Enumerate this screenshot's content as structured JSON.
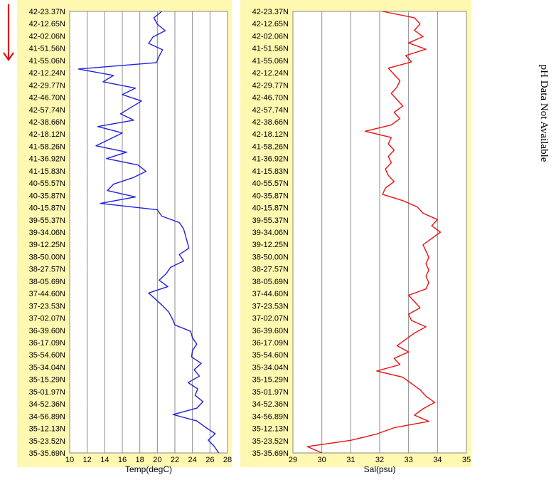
{
  "direction_arrow": {
    "color": "#e01010"
  },
  "chart_data": [
    {
      "type": "line",
      "xlabel": "Temp(degC)",
      "xlim": [
        10,
        28
      ],
      "xticks": [
        10,
        12,
        14,
        16,
        18,
        20,
        22,
        24,
        26,
        28
      ],
      "grid": true,
      "background": "#fff8b0",
      "line_color": "#2020e0",
      "ylabels": [
        "42-23.37N",
        "42-12.65N",
        "42-02.06N",
        "41-51.56N",
        "41-55.06N",
        "42-12.24N",
        "42-29.77N",
        "42-46.70N",
        "42-57.74N",
        "42-38.66N",
        "42-18.12N",
        "41-58.26N",
        "41-36.92N",
        "41-15.83N",
        "40-55.57N",
        "40-35.87N",
        "40-15.87N",
        "39-55.37N",
        "39-34.06N",
        "39-12.25N",
        "38-50.00N",
        "38-27.57N",
        "38-05.69N",
        "37-44.60N",
        "37-23.53N",
        "37-02.07N",
        "36-39.60N",
        "36-17.09N",
        "35-54.60N",
        "35-34.04N",
        "35-15.29N",
        "35-01.97N",
        "34-52.36N",
        "34-56.89N",
        "35-12.13N",
        "35-23.52N",
        "35-35.69N"
      ],
      "values": [
        20.5,
        19.6,
        20.0,
        20.9,
        19.5,
        19.0,
        20.6,
        20.2,
        19.9,
        11.0,
        15.0,
        13.8,
        17.5,
        16.0,
        18.2,
        17.0,
        15.8,
        17.3,
        13.2,
        16.0,
        14.5,
        13.0,
        16.5,
        14.2,
        17.8,
        18.7,
        17.2,
        15.0,
        14.3,
        17.5,
        13.5,
        20.0,
        20.5,
        22.5,
        23.0,
        23.2,
        23.4,
        23.6,
        22.5,
        23.0,
        21.5,
        21.0,
        20.2,
        21.2,
        19.0,
        19.8,
        20.6,
        21.3,
        21.7,
        22.0,
        23.8,
        24.0,
        24.5,
        24.0,
        23.9,
        25.0,
        24.2,
        24.8,
        23.5,
        24.6,
        24.3,
        25.2,
        24.5,
        21.8,
        24.5,
        25.5,
        26.6,
        25.8,
        26.5,
        27.0
      ]
    },
    {
      "type": "line",
      "xlabel": "Sal(psu)",
      "xlim": [
        29,
        35
      ],
      "xticks": [
        29,
        30,
        31,
        32,
        33,
        34,
        35
      ],
      "grid": true,
      "background": "#fff8b0",
      "line_color": "#ee1010",
      "ylabels": [
        "42-23.37N",
        "42-12.65N",
        "42-02.06N",
        "41-51.56N",
        "41-55.06N",
        "42-12.24N",
        "42-29.77N",
        "42-46.70N",
        "42-57.74N",
        "42-38.66N",
        "42-18.12N",
        "41-58.26N",
        "41-36.92N",
        "41-15.83N",
        "40-55.57N",
        "40-35.87N",
        "40-15.87N",
        "39-55.37N",
        "39-34.06N",
        "39-12.25N",
        "38-50.00N",
        "38-27.57N",
        "38-05.69N",
        "37-44.60N",
        "37-23.53N",
        "37-02.07N",
        "36-39.60N",
        "36-17.09N",
        "35-54.60N",
        "35-34.04N",
        "35-15.29N",
        "35-01.97N",
        "34-52.36N",
        "34-56.89N",
        "35-12.13N",
        "35-23.52N",
        "35-35.69N"
      ],
      "values": [
        32.1,
        33.2,
        33.4,
        33.2,
        33.5,
        33.0,
        33.6,
        32.9,
        33.1,
        32.3,
        32.5,
        32.7,
        32.6,
        32.4,
        32.6,
        32.8,
        32.5,
        32.7,
        32.4,
        31.5,
        32.4,
        32.3,
        32.5,
        32.3,
        32.4,
        32.2,
        32.3,
        32.5,
        32.2,
        32.1,
        32.8,
        33.3,
        33.5,
        34.0,
        33.8,
        34.1,
        33.8,
        33.5,
        33.6,
        33.7,
        33.6,
        33.7,
        33.6,
        33.7,
        33.6,
        33.0,
        33.2,
        33.4,
        33.0,
        33.1,
        33.6,
        33.2,
        32.9,
        32.6,
        33.0,
        32.5,
        32.7,
        31.9,
        32.8,
        33.1,
        33.4,
        33.6,
        33.9,
        33.5,
        33.2,
        33.7,
        32.5,
        31.9,
        31.0,
        29.5,
        30.0
      ]
    }
  ],
  "right_panel": {
    "message": "pH Data Not Available"
  }
}
